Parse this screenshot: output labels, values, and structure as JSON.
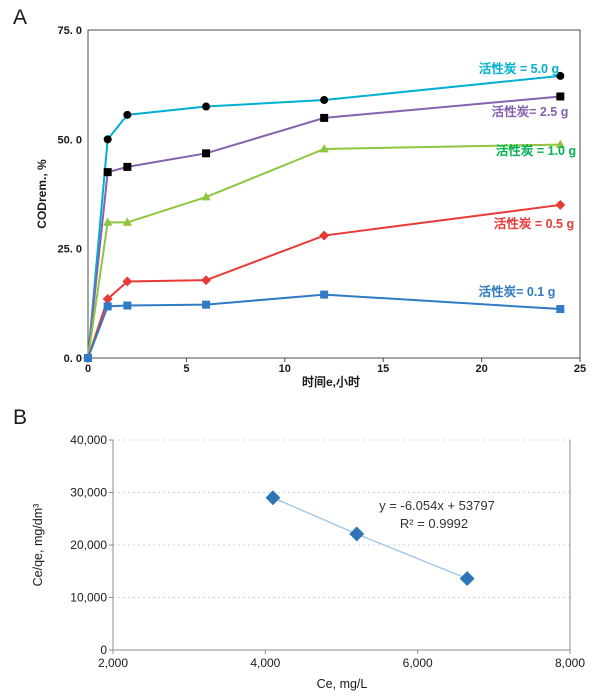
{
  "panels": [
    {
      "id": "A",
      "label": "A"
    },
    {
      "id": "B",
      "label": "B"
    }
  ],
  "chart_data": [
    {
      "id": "A",
      "type": "line",
      "title": "",
      "xlabel": "时间e,小时",
      "ylabel": "CODrem., %",
      "xlim": [
        0,
        25
      ],
      "ylim": [
        0,
        75
      ],
      "x_ticks": [
        0,
        5,
        10,
        15,
        20,
        25
      ],
      "x_tick_labels": [
        "0",
        "5",
        "10",
        "15",
        "20",
        "25"
      ],
      "y_ticks": [
        0,
        25,
        50,
        75
      ],
      "y_tick_labels": [
        "0. 0",
        "25. 0",
        "50. 0",
        "75. 0"
      ],
      "grid": false,
      "border": "box",
      "border_color": "#4d4d4d",
      "legend_position": "inline-right",
      "x": [
        0,
        1,
        2,
        6,
        12,
        24
      ],
      "series": [
        {
          "name": "活性炭 = 5.0 g",
          "values": [
            0,
            50.0,
            55.6,
            57.5,
            59.0,
            64.5
          ],
          "line_color": "#00B0D0",
          "marker": "circle",
          "marker_color": "#000000",
          "label": {
            "text": "活性炭 = 5.0 g",
            "color": "#00B0D0",
            "x": 519,
            "y": 73
          }
        },
        {
          "name": "活性炭= 2.5 g",
          "values": [
            0,
            42.5,
            43.7,
            46.8,
            54.9,
            59.8
          ],
          "line_color": "#8661AD",
          "marker": "square",
          "marker_color": "#000000",
          "label": {
            "text": "活性炭= 2.5 g",
            "color": "#8661AD",
            "x": 530,
            "y": 116
          }
        },
        {
          "name": "活性炭 = 1.0 g",
          "values": [
            0,
            31.0,
            31.0,
            36.8,
            47.8,
            48.8
          ],
          "line_color": "#8EC63F",
          "marker": "triangle",
          "marker_color": "#8EC63F",
          "label": {
            "text": "活性炭 = 1.0 g",
            "color": "#00B050",
            "x": 536,
            "y": 155
          }
        },
        {
          "name": "活性炭 = 0.5 g",
          "values": [
            0,
            13.5,
            17.5,
            17.8,
            28.0,
            35.0
          ],
          "line_color": "#E83934",
          "marker": "diamond",
          "marker_color": "#E83934",
          "label": {
            "text": "活性炭 = 0.5 g",
            "color": "#E83934",
            "x": 534,
            "y": 228
          }
        },
        {
          "name": "活性炭= 0.1 g",
          "values": [
            0,
            11.8,
            12.0,
            12.2,
            14.5,
            11.2
          ],
          "line_color": "#2F7BC4",
          "marker": "square",
          "marker_color": "#2F7BC4",
          "label": {
            "text": "活性炭= 0.1 g",
            "color": "#2F7BC4",
            "x": 517,
            "y": 296
          }
        }
      ]
    },
    {
      "id": "B",
      "type": "scatter",
      "title": "",
      "xlabel": "Ce, mg/L",
      "ylabel": "Ce/qe, mg/dm³",
      "xlim": [
        2000,
        8000
      ],
      "ylim": [
        0,
        40000
      ],
      "x_ticks": [
        2000,
        4000,
        6000,
        8000
      ],
      "x_tick_labels": [
        "2,000",
        "4,000",
        "6,000",
        "8,000"
      ],
      "y_ticks": [
        0,
        10000,
        20000,
        30000,
        40000
      ],
      "y_tick_labels": [
        "0",
        "10,000",
        "20,000",
        "30,000",
        "40,000"
      ],
      "grid": true,
      "grid_color": "#C3D6EE",
      "border": "left-bottom-right",
      "border_color": "#8c8c8c",
      "points": [
        {
          "x": 4100,
          "y": 29000
        },
        {
          "x": 5200,
          "y": 22100
        },
        {
          "x": 6650,
          "y": 13600
        }
      ],
      "marker": "diamond",
      "marker_color": "#2E75B6",
      "trendline": {
        "color": "#9DC3E6"
      },
      "annotations": [
        {
          "text": "y = -6.054x + 53797",
          "x": 437,
          "y": 110,
          "color": "#333333"
        },
        {
          "text": "R² = 0.9992",
          "x": 434,
          "y": 128,
          "color": "#333333"
        }
      ]
    }
  ]
}
